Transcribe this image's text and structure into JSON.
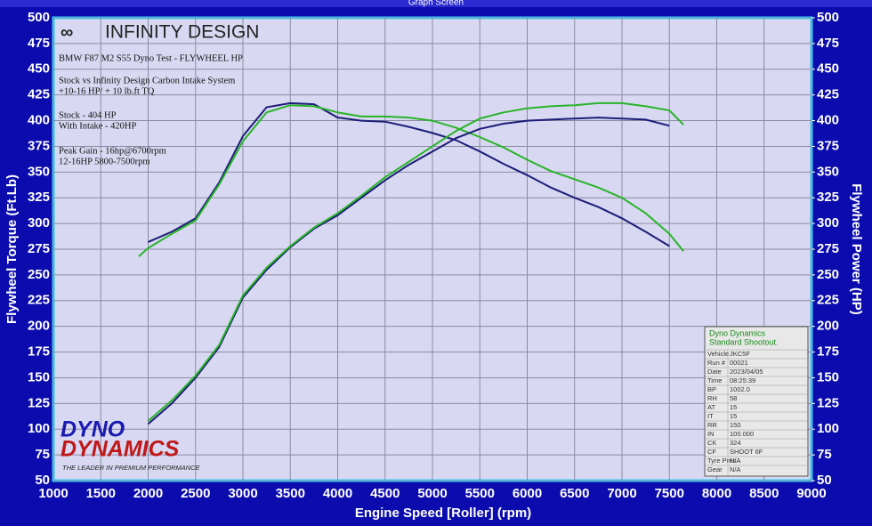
{
  "window_title": "Graph Screen",
  "chart_data": {
    "type": "line",
    "x_label": "Engine Speed [Roller] (rpm)",
    "y_label": "Flywheel Torque (Ft.Lb)",
    "y2_label": "Flywheel Power (HP)",
    "annotations": [
      "BMW F87 M2 S55 Dyno Test - FLYWHEEL HP",
      "Stock vs Infinity Design Carbon Intake System",
      "+10-16 HP/ + 10 lb.ft TQ",
      "Stock - 404 HP",
      "With Intake - 420HP",
      "Peak Gain - 16hp@6700rpm",
      "12-16HP 5800-7500rpm"
    ],
    "x": [
      1900,
      2000,
      2250,
      2500,
      2750,
      3000,
      3250,
      3500,
      3750,
      4000,
      4250,
      4500,
      4750,
      5000,
      5250,
      5500,
      5750,
      6000,
      6250,
      6500,
      6750,
      7000,
      7250,
      7500,
      7650
    ],
    "series": [
      {
        "color": "#1c1c78",
        "values": [
          null,
          282,
          292,
          305,
          340,
          385,
          413,
          417,
          416,
          403,
          400,
          399,
          394,
          388,
          381,
          370,
          358,
          347,
          335,
          325,
          316,
          305,
          292,
          278,
          null
        ]
      },
      {
        "color": "#28b428",
        "values": [
          268,
          276,
          290,
          303,
          338,
          380,
          408,
          415,
          414,
          408,
          404,
          404,
          403,
          400,
          393,
          384,
          374,
          362,
          351,
          343,
          335,
          325,
          310,
          290,
          273
        ]
      },
      {
        "color": "#1c1c78",
        "axis": "y2",
        "values": [
          null,
          105,
          125,
          150,
          180,
          228,
          255,
          277,
          295,
          308,
          325,
          342,
          357,
          370,
          383,
          392,
          397,
          400,
          401,
          402,
          403,
          402,
          401,
          395,
          null
        ]
      },
      {
        "color": "#28b428",
        "axis": "y2",
        "values": [
          null,
          108,
          128,
          152,
          182,
          230,
          257,
          278,
          296,
          310,
          327,
          345,
          360,
          375,
          390,
          402,
          408,
          412,
          414,
          415,
          417,
          417,
          414,
          410,
          396
        ]
      }
    ],
    "xlim": [
      1000,
      9000
    ],
    "xticks": [
      1000,
      1500,
      2000,
      2500,
      3000,
      3500,
      4000,
      4500,
      5000,
      5500,
      6000,
      6500,
      7000,
      7500,
      8000,
      8500,
      9000
    ],
    "ylim": [
      50,
      500
    ],
    "yticks": [
      50,
      75,
      100,
      125,
      150,
      175,
      200,
      225,
      250,
      275,
      300,
      325,
      350,
      375,
      400,
      425,
      450,
      475,
      500
    ],
    "y2lim": [
      50,
      500
    ],
    "y2ticks": [
      50,
      75,
      100,
      125,
      150,
      175,
      200,
      225,
      250,
      275,
      300,
      325,
      350,
      375,
      400,
      425,
      450,
      475,
      500
    ],
    "grid": true
  },
  "logos": {
    "infinity": "INFINITY DESIGN",
    "dyno": "DYNO",
    "dynamics": "DYNAMICS",
    "tagline": "THE LEADER IN PREMIUM PERFORMANCE"
  },
  "info_box": {
    "header": [
      "Dyno Dynamics",
      "Standard Shootout."
    ],
    "rows": [
      [
        "Vehicle",
        "JKC5F"
      ],
      [
        "Run #",
        "00021"
      ],
      [
        "Date",
        "2023/04/05"
      ],
      [
        "Time",
        "08:25:39"
      ],
      [
        "BP",
        "1002.0"
      ],
      [
        "RH",
        "58"
      ],
      [
        "AT",
        "15"
      ],
      [
        "IT",
        "15"
      ],
      [
        "RR",
        "150"
      ],
      [
        "IN",
        "100.000"
      ],
      [
        "CK",
        "324"
      ],
      [
        "CF",
        "SHOOT 6F"
      ],
      [
        "Tyre Pres.",
        "N/A"
      ],
      [
        "Gear",
        "N/A"
      ]
    ]
  }
}
